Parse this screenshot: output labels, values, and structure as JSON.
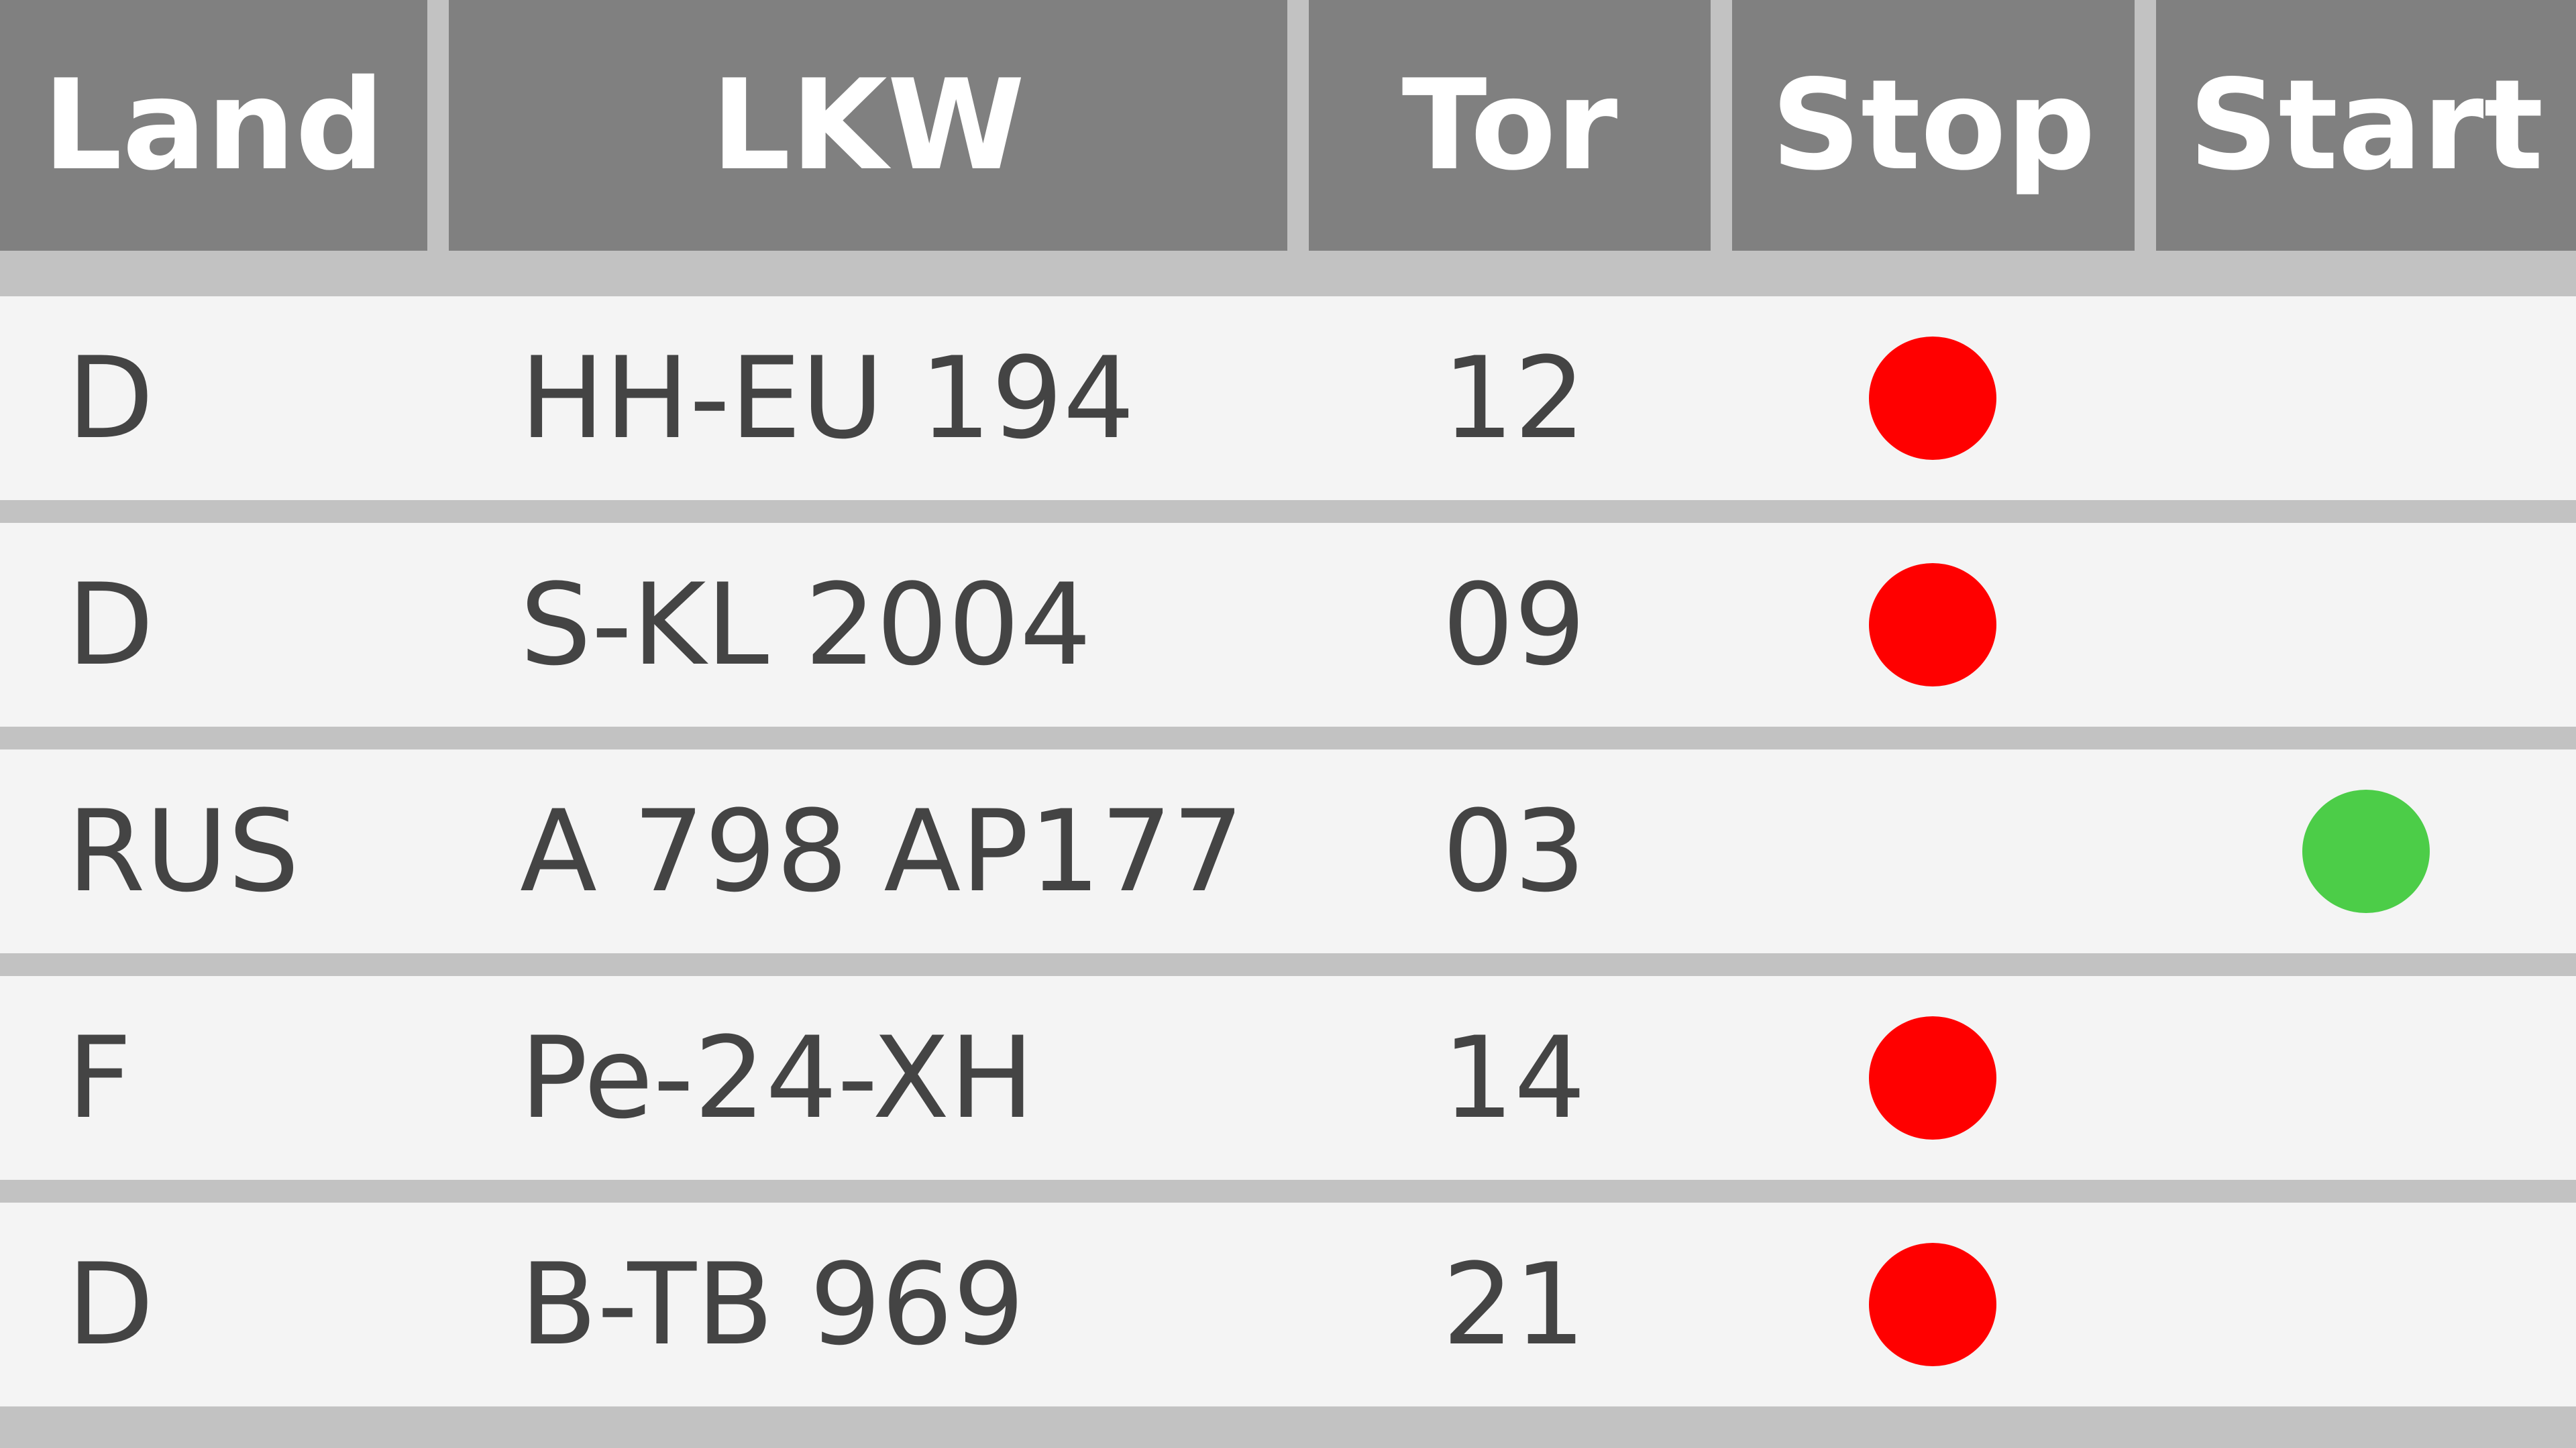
{
  "header": {
    "land": "Land",
    "lkw": "LKW",
    "tor": "Tor",
    "stop": "Stop",
    "start": "Start"
  },
  "colors": {
    "stop": "#ff0000",
    "start": "#4ccd48"
  },
  "rows": [
    {
      "land": "D",
      "lkw": "HH-EU 194",
      "tor": "12",
      "status": "stop"
    },
    {
      "land": "D",
      "lkw": "S-KL 2004",
      "tor": "09",
      "status": "stop"
    },
    {
      "land": "RUS",
      "lkw": "A 798 AP177",
      "tor": "03",
      "status": "start"
    },
    {
      "land": "F",
      "lkw": "Pe-24-XH",
      "tor": "14",
      "status": "stop"
    },
    {
      "land": "D",
      "lkw": "B-TB 969",
      "tor": "21",
      "status": "stop"
    }
  ]
}
